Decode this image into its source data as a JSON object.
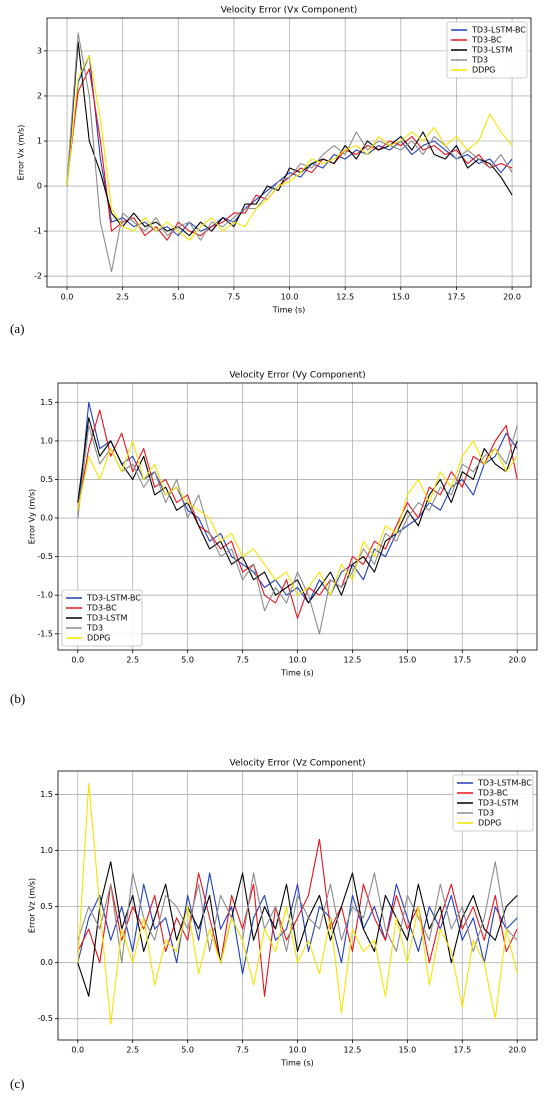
{
  "chart_data": [
    {
      "type": "line",
      "panel_label": "(a)",
      "title": "Velocity Error (Vx Component)",
      "x_label": "Time (s)",
      "y_label": "Error Vx (m/s)",
      "grid": true,
      "legend": "upper right",
      "xlim": [
        -0.9,
        20.85
      ],
      "ylim": [
        -2.24,
        3.73
      ],
      "xticks": [
        {
          "value": 0,
          "label": "0.0"
        },
        2.5,
        {
          "value": 5,
          "label": "5.0"
        },
        7.5,
        {
          "value": 10,
          "label": "10.0"
        },
        12.5,
        {
          "value": 15,
          "label": "15.0"
        },
        17.5,
        {
          "value": 20,
          "label": "20.0"
        }
      ],
      "yticks": [
        -2,
        -1,
        0,
        1,
        2,
        3
      ],
      "x": [
        0,
        0.5,
        1,
        1.5,
        2,
        2.5,
        3,
        3.5,
        4,
        4.5,
        5,
        5.5,
        6,
        6.5,
        7,
        7.5,
        8,
        8.5,
        9,
        9.5,
        10,
        10.5,
        11,
        11.5,
        12,
        12.5,
        13,
        13.5,
        14,
        14.5,
        15,
        15.5,
        16,
        16.5,
        17,
        17.5,
        18,
        18.5,
        19,
        19.5,
        20
      ],
      "series": [
        {
          "name": "TD3-LSTM-BC",
          "color": "#1f3fbf",
          "values": [
            0.0,
            2.3,
            2.9,
            0.6,
            -0.8,
            -0.7,
            -0.9,
            -0.8,
            -1.0,
            -0.9,
            -1.1,
            -0.8,
            -1.0,
            -0.9,
            -0.7,
            -0.8,
            -0.5,
            -0.3,
            -0.1,
            0.1,
            0.3,
            0.2,
            0.5,
            0.4,
            0.7,
            0.6,
            0.8,
            0.7,
            0.9,
            0.8,
            1.0,
            0.7,
            0.9,
            1.0,
            0.8,
            0.6,
            0.7,
            0.5,
            0.6,
            0.3,
            0.6
          ]
        },
        {
          "name": "TD3-BC",
          "color": "#e8141c",
          "values": [
            0.1,
            2.1,
            2.6,
            1.0,
            -1.0,
            -0.8,
            -0.7,
            -1.1,
            -0.9,
            -1.2,
            -0.8,
            -1.0,
            -1.1,
            -0.9,
            -0.8,
            -0.6,
            -0.6,
            -0.2,
            -0.3,
            0.0,
            0.2,
            0.4,
            0.3,
            0.6,
            0.5,
            0.8,
            0.7,
            0.9,
            0.8,
            1.0,
            0.9,
            1.1,
            0.8,
            0.9,
            0.7,
            0.8,
            0.5,
            0.7,
            0.4,
            0.5,
            0.4
          ]
        },
        {
          "name": "TD3-LSTM",
          "color": "#000000",
          "values": [
            0.0,
            3.2,
            1.0,
            0.3,
            -0.6,
            -0.9,
            -0.6,
            -0.9,
            -0.8,
            -1.0,
            -0.9,
            -1.1,
            -0.8,
            -1.0,
            -0.7,
            -0.9,
            -0.4,
            -0.4,
            0.0,
            -0.1,
            0.4,
            0.3,
            0.5,
            0.6,
            0.5,
            0.9,
            0.6,
            1.0,
            0.8,
            0.9,
            1.1,
            0.8,
            1.2,
            0.7,
            0.6,
            0.9,
            0.4,
            0.6,
            0.5,
            0.2,
            -0.2
          ]
        },
        {
          "name": "TD3",
          "color": "#8c8c8c",
          "values": [
            0.1,
            3.4,
            2.0,
            -0.8,
            -1.9,
            -0.6,
            -0.8,
            -1.0,
            -0.7,
            -1.1,
            -0.9,
            -0.8,
            -1.2,
            -0.8,
            -0.9,
            -0.7,
            -0.5,
            -0.5,
            -0.2,
            0.1,
            0.2,
            0.5,
            0.4,
            0.7,
            0.9,
            0.7,
            1.2,
            0.8,
            1.0,
            0.9,
            0.8,
            1.0,
            0.7,
            1.1,
            0.9,
            0.6,
            0.8,
            0.6,
            0.4,
            0.7,
            0.3
          ]
        },
        {
          "name": "DDPG",
          "color": "#f5e400",
          "values": [
            0.0,
            2.4,
            2.9,
            1.5,
            -0.5,
            -0.9,
            -1.0,
            -0.7,
            -1.0,
            -0.8,
            -1.0,
            -1.2,
            -0.9,
            -0.7,
            -1.0,
            -0.8,
            -0.9,
            -0.5,
            -0.3,
            0.0,
            0.1,
            0.3,
            0.6,
            0.5,
            0.6,
            0.8,
            0.9,
            0.7,
            1.1,
            0.9,
            1.0,
            1.2,
            1.0,
            1.3,
            0.9,
            1.1,
            0.8,
            1.0,
            1.6,
            1.2,
            0.9
          ]
        }
      ]
    },
    {
      "type": "line",
      "panel_label": "(b)",
      "title": "Velocity Error (Vy Component)",
      "x_label": "Time (s)",
      "y_label": "Error Vy (m/s)",
      "grid": true,
      "legend": "lower left",
      "xlim": [
        -0.9,
        20.9
      ],
      "ylim": [
        -1.71,
        1.75
      ],
      "xticks": [
        {
          "value": 0,
          "label": "0.0"
        },
        2.5,
        {
          "value": 5,
          "label": "5.0"
        },
        7.5,
        {
          "value": 10,
          "label": "10.0"
        },
        12.5,
        {
          "value": 15,
          "label": "15.0"
        },
        17.5,
        {
          "value": 20,
          "label": "20.0"
        }
      ],
      "yticks": [
        -1.5,
        {
          "value": -1,
          "label": "-1.0"
        },
        -0.5,
        {
          "value": 0,
          "label": "0.0"
        },
        0.5,
        {
          "value": 1,
          "label": "1.0"
        },
        1.5
      ],
      "x": [
        0,
        0.5,
        1,
        1.5,
        2,
        2.5,
        3,
        3.5,
        4,
        4.5,
        5,
        5.5,
        6,
        6.5,
        7,
        7.5,
        8,
        8.5,
        9,
        9.5,
        10,
        10.5,
        11,
        11.5,
        12,
        12.5,
        13,
        13.5,
        14,
        14.5,
        15,
        15.5,
        16,
        16.5,
        17,
        17.5,
        18,
        18.5,
        19,
        19.5,
        20
      ],
      "series": [
        {
          "name": "TD3-LSTM-BC",
          "color": "#1f3fbf",
          "values": [
            0.0,
            1.5,
            0.9,
            1.0,
            0.7,
            0.8,
            0.5,
            0.6,
            0.3,
            0.4,
            0.1,
            0.0,
            -0.3,
            -0.2,
            -0.5,
            -0.6,
            -0.7,
            -0.9,
            -0.8,
            -1.0,
            -0.9,
            -1.1,
            -0.8,
            -1.0,
            -0.7,
            -0.6,
            -0.8,
            -0.4,
            -0.5,
            -0.2,
            -0.1,
            0.0,
            0.2,
            0.1,
            0.4,
            0.5,
            0.3,
            0.7,
            0.8,
            1.1,
            0.9
          ]
        },
        {
          "name": "TD3-BC",
          "color": "#e8141c",
          "values": [
            0.1,
            0.9,
            1.4,
            0.8,
            1.1,
            0.6,
            0.9,
            0.4,
            0.5,
            0.2,
            0.3,
            -0.1,
            -0.2,
            -0.4,
            -0.3,
            -0.7,
            -0.6,
            -1.0,
            -1.1,
            -0.8,
            -1.3,
            -0.9,
            -1.0,
            -0.8,
            -0.9,
            -0.5,
            -0.6,
            -0.3,
            -0.4,
            -0.1,
            0.2,
            0.0,
            0.4,
            0.3,
            0.6,
            0.4,
            0.8,
            0.7,
            1.0,
            1.2,
            0.5
          ]
        },
        {
          "name": "TD3-LSTM",
          "color": "#000000",
          "values": [
            0.2,
            1.3,
            0.8,
            1.0,
            0.7,
            0.5,
            0.8,
            0.3,
            0.4,
            0.1,
            0.2,
            -0.1,
            -0.4,
            -0.3,
            -0.6,
            -0.5,
            -0.8,
            -0.7,
            -1.0,
            -0.9,
            -0.8,
            -1.1,
            -0.9,
            -0.7,
            -1.0,
            -0.6,
            -0.5,
            -0.7,
            -0.3,
            -0.2,
            0.1,
            -0.1,
            0.3,
            0.5,
            0.2,
            0.6,
            0.5,
            0.9,
            0.7,
            0.6,
            1.0
          ]
        },
        {
          "name": "TD3",
          "color": "#8c8c8c",
          "values": [
            0.0,
            1.2,
            0.7,
            0.9,
            0.6,
            0.7,
            0.4,
            0.6,
            0.2,
            0.5,
            0.0,
            0.3,
            -0.2,
            -0.5,
            -0.4,
            -0.8,
            -0.6,
            -1.2,
            -0.9,
            -1.1,
            -0.7,
            -1.0,
            -1.5,
            -0.8,
            -0.9,
            -0.7,
            -0.4,
            -0.6,
            -0.2,
            -0.3,
            0.0,
            0.2,
            0.1,
            0.4,
            0.3,
            0.7,
            0.6,
            0.8,
            0.9,
            0.7,
            1.2
          ]
        },
        {
          "name": "DDPG",
          "color": "#f5e400",
          "values": [
            0.1,
            0.8,
            0.5,
            0.9,
            0.6,
            1.0,
            0.5,
            0.7,
            0.3,
            0.4,
            0.2,
            0.1,
            0.0,
            -0.3,
            -0.2,
            -0.5,
            -0.4,
            -0.6,
            -0.8,
            -0.7,
            -1.0,
            -0.9,
            -0.7,
            -1.0,
            -0.6,
            -0.8,
            -0.3,
            -0.5,
            -0.1,
            -0.2,
            0.3,
            0.5,
            0.2,
            0.6,
            0.4,
            0.8,
            1.0,
            0.7,
            0.9,
            0.6,
            0.8
          ]
        }
      ]
    },
    {
      "type": "line",
      "panel_label": "(c)",
      "title": "Velocity Error (Vz Component)",
      "x_label": "Time (s)",
      "y_label": "Error Vz (m/s)",
      "grid": true,
      "legend": "upper right",
      "xlim": [
        -0.9,
        20.9
      ],
      "ylim": [
        -0.69,
        1.71
      ],
      "xticks": [
        {
          "value": 0,
          "label": "0.0"
        },
        2.5,
        {
          "value": 5,
          "label": "5.0"
        },
        7.5,
        {
          "value": 10,
          "label": "10.0"
        },
        12.5,
        {
          "value": 15,
          "label": "15.0"
        },
        17.5,
        {
          "value": 20,
          "label": "20.0"
        }
      ],
      "yticks": [
        -0.5,
        {
          "value": 0,
          "label": "0.0"
        },
        0.5,
        {
          "value": 1,
          "label": "1.0"
        },
        1.5
      ],
      "x": [
        0,
        0.5,
        1,
        1.5,
        2,
        2.5,
        3,
        3.5,
        4,
        4.5,
        5,
        5.5,
        6,
        6.5,
        7,
        7.5,
        8,
        8.5,
        9,
        9.5,
        10,
        10.5,
        11,
        11.5,
        12,
        12.5,
        13,
        13.5,
        14,
        14.5,
        15,
        15.5,
        16,
        16.5,
        17,
        17.5,
        18,
        18.5,
        19,
        19.5,
        20
      ],
      "series": [
        {
          "name": "TD3-LSTM-BC",
          "color": "#1f3fbf",
          "values": [
            0.0,
            0.4,
            0.6,
            0.2,
            0.5,
            0.1,
            0.7,
            0.3,
            0.4,
            0.0,
            0.6,
            0.2,
            0.8,
            0.3,
            0.5,
            -0.1,
            0.4,
            0.6,
            0.2,
            0.3,
            0.7,
            0.1,
            0.5,
            0.4,
            0.0,
            0.6,
            0.3,
            0.5,
            0.2,
            0.7,
            0.4,
            0.1,
            0.5,
            0.3,
            0.6,
            0.2,
            0.4,
            0.0,
            0.5,
            0.3,
            0.4
          ]
        },
        {
          "name": "TD3-BC",
          "color": "#e8141c",
          "values": [
            0.1,
            0.3,
            0.0,
            0.7,
            0.2,
            0.5,
            0.3,
            0.6,
            0.1,
            0.4,
            0.2,
            0.8,
            0.4,
            0.0,
            0.6,
            0.3,
            0.7,
            -0.3,
            0.5,
            0.2,
            0.4,
            0.6,
            1.1,
            0.3,
            0.5,
            0.1,
            0.7,
            0.4,
            0.2,
            0.6,
            0.3,
            0.5,
            0.0,
            0.4,
            0.7,
            0.3,
            0.5,
            0.2,
            0.6,
            0.1,
            0.3
          ]
        },
        {
          "name": "TD3-LSTM",
          "color": "#000000",
          "values": [
            0.0,
            -0.3,
            0.5,
            0.9,
            0.3,
            0.6,
            0.1,
            0.4,
            0.7,
            0.2,
            0.5,
            0.3,
            0.6,
            0.0,
            0.4,
            0.8,
            0.2,
            0.5,
            0.3,
            0.7,
            0.1,
            0.4,
            0.6,
            0.2,
            0.5,
            0.8,
            0.3,
            0.1,
            0.6,
            0.4,
            0.2,
            0.7,
            0.3,
            0.5,
            0.0,
            0.4,
            0.6,
            0.3,
            0.2,
            0.5,
            0.6
          ]
        },
        {
          "name": "TD3",
          "color": "#8c8c8c",
          "values": [
            0.2,
            0.5,
            0.3,
            0.7,
            0.0,
            0.8,
            0.4,
            0.2,
            0.6,
            0.5,
            0.3,
            0.7,
            0.1,
            0.6,
            0.4,
            0.2,
            0.8,
            0.3,
            0.5,
            0.1,
            0.6,
            0.4,
            0.3,
            0.7,
            0.2,
            0.5,
            0.4,
            0.8,
            0.3,
            0.1,
            0.6,
            0.4,
            0.2,
            0.7,
            0.3,
            0.5,
            0.1,
            0.4,
            0.9,
            0.3,
            0.2
          ]
        },
        {
          "name": "DDPG",
          "color": "#f5e400",
          "values": [
            0.0,
            1.6,
            0.5,
            -0.55,
            0.3,
            0.0,
            0.4,
            -0.2,
            0.2,
            0.1,
            0.5,
            -0.1,
            0.3,
            0.0,
            0.4,
            0.2,
            -0.2,
            0.3,
            0.1,
            0.5,
            0.0,
            0.2,
            -0.1,
            0.4,
            -0.45,
            0.3,
            0.1,
            0.2,
            -0.3,
            0.4,
            0.0,
            0.5,
            -0.2,
            0.3,
            0.1,
            -0.4,
            0.2,
            0.0,
            -0.5,
            0.3,
            -0.1
          ]
        }
      ]
    }
  ]
}
